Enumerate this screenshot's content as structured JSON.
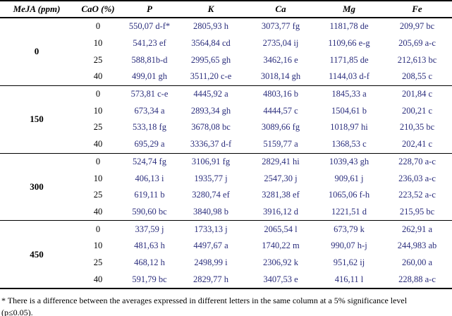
{
  "table": {
    "columns": [
      "MeJA (ppm)",
      "CaO (%)",
      "P",
      "K",
      "Ca",
      "Mg",
      "Fe"
    ],
    "groups": [
      {
        "meja": "0",
        "rows": [
          {
            "cao": "0",
            "p": "550,07 d-f*",
            "k": "2805,93 h",
            "ca": "3073,77 fg",
            "mg": "1181,78 de",
            "fe": "209,97 bc"
          },
          {
            "cao": "10",
            "p": "541,23 ef",
            "k": "3564,84 cd",
            "ca": "2735,04 ij",
            "mg": "1109,66 e-g",
            "fe": "205,69 a-c"
          },
          {
            "cao": "25",
            "p": "588,81b-d",
            "k": "2995,65 gh",
            "ca": "3462,16 e",
            "mg": "1171,85 de",
            "fe": "212,613 bc"
          },
          {
            "cao": "40",
            "p": "499,01 gh",
            "k": "3511,20 c-e",
            "ca": "3018,14 gh",
            "mg": "1144,03 d-f",
            "fe": "208,55 c"
          }
        ]
      },
      {
        "meja": "150",
        "rows": [
          {
            "cao": "0",
            "p": "573,81 c-e",
            "k": "4445,92 a",
            "ca": "4803,16 b",
            "mg": "1845,33 a",
            "fe": "201,84 c"
          },
          {
            "cao": "10",
            "p": "673,34 a",
            "k": "2893,34 gh",
            "ca": "4444,57 c",
            "mg": "1504,61 b",
            "fe": "200,21 c"
          },
          {
            "cao": "25",
            "p": "533,18 fg",
            "k": "3678,08 bc",
            "ca": "3089,66 fg",
            "mg": "1018,97 hi",
            "fe": "210,35 bc"
          },
          {
            "cao": "40",
            "p": "695,29 a",
            "k": "3336,37 d-f",
            "ca": "5159,77 a",
            "mg": "1368,53 c",
            "fe": "202,41 c"
          }
        ]
      },
      {
        "meja": "300",
        "rows": [
          {
            "cao": "0",
            "p": "524,74 fg",
            "k": "3106,91 fg",
            "ca": "2829,41 hi",
            "mg": "1039,43 gh",
            "fe": "228,70 a-c"
          },
          {
            "cao": "10",
            "p": "406,13 i",
            "k": "1935,77 j",
            "ca": "2547,30 j",
            "mg": "909,61 j",
            "fe": "236,03 a-c"
          },
          {
            "cao": "25",
            "p": "619,11 b",
            "k": "3280,74 ef",
            "ca": "3281,38 ef",
            "mg": "1065,06 f-h",
            "fe": "223,52 a-c"
          },
          {
            "cao": "40",
            "p": "590,60 bc",
            "k": "3840,98 b",
            "ca": "3916,12 d",
            "mg": "1221,51 d",
            "fe": "215,95 bc"
          }
        ]
      },
      {
        "meja": "450",
        "rows": [
          {
            "cao": "0",
            "p": "337,59 j",
            "k": "1733,13 j",
            "ca": "2065,54 l",
            "mg": "673,79 k",
            "fe": "262,91 a"
          },
          {
            "cao": "10",
            "p": "481,63 h",
            "k": "4497,67 a",
            "ca": "1740,22 m",
            "mg": "990,07 h-j",
            "fe": "244,983 ab"
          },
          {
            "cao": "25",
            "p": "468,12 h",
            "k": "2498,99 i",
            "ca": "2306,92 k",
            "mg": "951,62 ij",
            "fe": "260,00 a"
          },
          {
            "cao": "40",
            "p": "591,79 bc",
            "k": "2829,77 h",
            "ca": "3407,53 e",
            "mg": "416,11 l",
            "fe": "228,88 a-c"
          }
        ]
      }
    ]
  },
  "footnote": {
    "line1": "* There is a difference between the averages expressed in different letters in the same column at a 5% significance level",
    "line2": "(p≤0.05)."
  },
  "colors": {
    "value_text": "#2b2e7d",
    "header_text": "#000000",
    "border": "#000000"
  }
}
